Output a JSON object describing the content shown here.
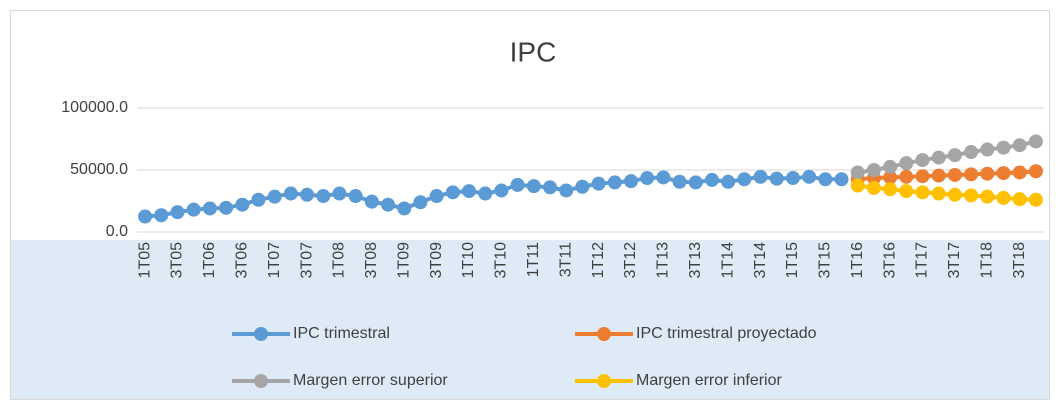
{
  "chart_data": {
    "type": "line",
    "title": "IPC",
    "categories": [
      "1T05",
      null,
      "3T05",
      null,
      "1T06",
      null,
      "3T06",
      null,
      "1T07",
      null,
      "3T07",
      null,
      "1T08",
      null,
      "3T08",
      null,
      "1T09",
      null,
      "3T09",
      null,
      "1T10",
      null,
      "3T10",
      null,
      "1T11",
      null,
      "3T11",
      null,
      "1T12",
      null,
      "3T12",
      null,
      "1T13",
      null,
      "3T13",
      null,
      "1T14",
      null,
      "3T14",
      null,
      "1T15",
      null,
      "3T15",
      null,
      "1T16",
      null,
      "3T16",
      null,
      "1T17",
      null,
      "3T17",
      null,
      "1T18",
      null,
      "3T18",
      null
    ],
    "series": [
      {
        "name": "IPC trimestral",
        "color": "#5b9bd5",
        "values": [
          12500,
          13500,
          16000,
          18000,
          19000,
          19500,
          22000,
          26000,
          28500,
          31000,
          30000,
          29000,
          31000,
          29000,
          24500,
          22000,
          19000,
          24000,
          29000,
          32000,
          33000,
          31000,
          33500,
          38000,
          37000,
          36000,
          33500,
          36500,
          39000,
          40000,
          41000,
          43500,
          44000,
          40500,
          40000,
          42000,
          40500,
          42500,
          44500,
          43000,
          43500,
          44500,
          42500,
          42500,
          null,
          null,
          null,
          null,
          null,
          null,
          null,
          null,
          null,
          null,
          null,
          null
        ]
      },
      {
        "name": "IPC trimestral proyectado",
        "color": "#ed7d31",
        "values": [
          null,
          null,
          null,
          null,
          null,
          null,
          null,
          null,
          null,
          null,
          null,
          null,
          null,
          null,
          null,
          null,
          null,
          null,
          null,
          null,
          null,
          null,
          null,
          null,
          null,
          null,
          null,
          null,
          null,
          null,
          null,
          null,
          null,
          null,
          null,
          null,
          null,
          null,
          null,
          null,
          null,
          null,
          null,
          null,
          42500,
          43500,
          44000,
          44500,
          45000,
          45500,
          46000,
          46500,
          47000,
          47500,
          48000,
          49000
        ]
      },
      {
        "name": "Margen error superior",
        "color": "#a5a5a5",
        "values": [
          null,
          null,
          null,
          null,
          null,
          null,
          null,
          null,
          null,
          null,
          null,
          null,
          null,
          null,
          null,
          null,
          null,
          null,
          null,
          null,
          null,
          null,
          null,
          null,
          null,
          null,
          null,
          null,
          null,
          null,
          null,
          null,
          null,
          null,
          null,
          null,
          null,
          null,
          null,
          null,
          null,
          null,
          null,
          null,
          48000,
          50000,
          52500,
          55500,
          58000,
          60000,
          62000,
          64500,
          66500,
          68000,
          70000,
          73000
        ]
      },
      {
        "name": "Margen error inferior",
        "color": "#ffc000",
        "values": [
          null,
          null,
          null,
          null,
          null,
          null,
          null,
          null,
          null,
          null,
          null,
          null,
          null,
          null,
          null,
          null,
          null,
          null,
          null,
          null,
          null,
          null,
          null,
          null,
          null,
          null,
          null,
          null,
          null,
          null,
          null,
          null,
          null,
          null,
          null,
          null,
          null,
          null,
          null,
          null,
          null,
          null,
          null,
          null,
          37500,
          35500,
          34500,
          33000,
          32000,
          31000,
          30000,
          29500,
          28500,
          27500,
          26500,
          26000
        ]
      }
    ],
    "ylim": [
      0,
      100000
    ],
    "yticks": [
      {
        "value": 0,
        "label": "0.0"
      },
      {
        "value": 50000,
        "label": "50000.0"
      },
      {
        "value": 100000,
        "label": "100000.0"
      }
    ],
    "grid": true
  }
}
